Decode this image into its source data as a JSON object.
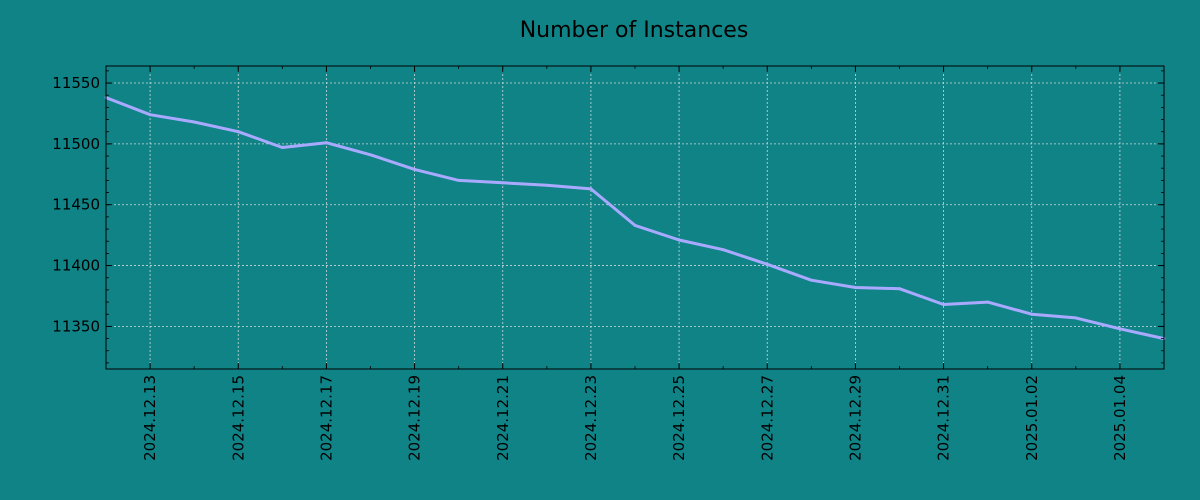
{
  "colors": {
    "background": "#108387",
    "line": "#a9aaff",
    "grid": "#c9d9d9",
    "frame": "#000000"
  },
  "chart_data": {
    "type": "line",
    "title": "Number of Instances",
    "xlabel": "",
    "ylabel": "",
    "x_range": [
      "2024-12-12",
      "2025-01-05"
    ],
    "ylim": [
      11315,
      11564
    ],
    "x_ticks": [
      "2024.12.13",
      "2024.12.15",
      "2024.12.17",
      "2024.12.19",
      "2024.12.21",
      "2024.12.23",
      "2024.12.25",
      "2024.12.27",
      "2024.12.29",
      "2024.12.31",
      "2025.01.02",
      "2025.01.04"
    ],
    "y_ticks": [
      11350,
      11400,
      11450,
      11500,
      11550
    ],
    "grid": true,
    "legend": "none",
    "series": [
      {
        "x": [
          "2024-12-12",
          "2024-12-13",
          "2024-12-14",
          "2024-12-15",
          "2024-12-16",
          "2024-12-17",
          "2024-12-18",
          "2024-12-19",
          "2024-12-20",
          "2024-12-21",
          "2024-12-22",
          "2024-12-23",
          "2024-12-24",
          "2024-12-25",
          "2024-12-26",
          "2024-12-27",
          "2024-12-28",
          "2024-12-29",
          "2024-12-30",
          "2024-12-31",
          "2025-01-01",
          "2025-01-02",
          "2025-01-03",
          "2025-01-04",
          "2025-01-05"
        ],
        "values": [
          11538,
          11524,
          11518,
          11510,
          11497,
          11501,
          11491,
          11479,
          11470,
          11468,
          11466,
          11463,
          11433,
          11421,
          11413,
          11401,
          11388,
          11382,
          11381,
          11368,
          11370,
          11360,
          11357,
          11348,
          11340
        ]
      }
    ]
  }
}
